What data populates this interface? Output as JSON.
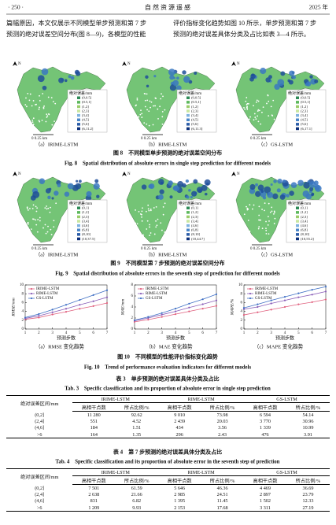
{
  "header": {
    "page": "· 250 ·",
    "journal": "自 然 资 源 遥 感",
    "year": "2025 年"
  },
  "intro": {
    "left": [
      "篇幅原因，本文仅展示不同模型单步预测和第 7 步",
      "预测的绝对误差空间分布(图 8—9)，各模型的性能"
    ],
    "right": [
      "评价指标变化趋势如图 10 所示，单步预测和第 7 步",
      "预测的绝对误差具体分类及占比如表 3—4 所示。"
    ]
  },
  "figure8": {
    "panels": [
      {
        "caption": "（a）IRIME-LSTM",
        "legend_title": "绝对误差/mm",
        "legend": [
          "(0,0.5]",
          "(0.5,1]",
          "(1,2]",
          "(2,3]",
          "(3,4]",
          "(4,5]",
          "(5,6]",
          "(6,11.2]"
        ],
        "north": "N",
        "scale": "0  0.25 km"
      },
      {
        "caption": "（b）RIME-LSTM",
        "legend_title": "绝对误差/mm",
        "legend": [
          "(0,0.5]",
          "(0.5,1]",
          "(1,2]",
          "(2,3]",
          "(3,4]",
          "(4,5]",
          "(5,6]",
          "(6,11.3]"
        ],
        "north": "N",
        "scale": "0  0.25 km"
      },
      {
        "caption": "（c）GS-LSTM",
        "legend_title": "绝对误差/mm",
        "legend": [
          "(0,0.5]",
          "(0.5,1]",
          "(1,2]",
          "(2,3]",
          "(3,4]",
          "(4,5]",
          "(5,6]",
          "(6,17.1]"
        ],
        "north": "N",
        "scale": "0  0.25 km"
      }
    ],
    "caption_cn": "图 8　不同模型单步预测的绝对误差空间分布",
    "caption_en": "Fig. 8　Spatial distribution of absolute errors in single step prediction for different models"
  },
  "figure9": {
    "panels": [
      {
        "caption": "（a）IRIME-LSTM",
        "legend_title": "绝对误差/mm",
        "legend": [
          "(0,1]",
          "(1,2]",
          "(2,3]",
          "(3,4]",
          "(4,6]",
          "(6,8]",
          "(8,10]",
          "(10,37.5]"
        ],
        "north": "N",
        "scale": "0  0.25 km"
      },
      {
        "caption": "（b）RIME-LSTM",
        "legend_title": "绝对误差/mm",
        "legend": [
          "(0,1]",
          "(1,2]",
          "(2,3]",
          "(3,4]",
          "(4,6]",
          "(6,8]",
          "(8,10]",
          "(10,44.7]"
        ],
        "north": "N",
        "scale": "0  0.25 km"
      },
      {
        "caption": "（c）GS-LSTM",
        "legend_title": "绝对误差/mm",
        "legend": [
          "(0,1]",
          "(1,2]",
          "(2,3]",
          "(3,4]",
          "(4,6]",
          "(6,8]",
          "(8,10]",
          "(10,55.2]"
        ],
        "north": "N",
        "scale": "0  0.25 km"
      }
    ],
    "caption_cn": "图 9　不同模型第 7 步预测的绝对误差空间分布",
    "caption_en": "Fig. 9　Spatial distribution of absolute errors in the seventh step of prediction for different models"
  },
  "figure10": {
    "panels": [
      {
        "type": "line",
        "caption": "（a）RMSE 变化趋势",
        "ylabel": "RMSE/mm",
        "xlabel": "预测步数",
        "x": [
          1,
          2,
          3,
          4,
          5,
          6,
          7
        ],
        "xlim": [
          1,
          7
        ],
        "xticks": [
          1,
          2,
          3,
          4,
          5,
          6,
          7
        ],
        "ylim": [
          0,
          10
        ],
        "yticks": [
          0,
          2,
          4,
          6,
          8,
          10
        ],
        "series": [
          {
            "name": "IRIME-LSTM",
            "color": "#e0607e",
            "values": [
              2.2,
              2.6,
              3.3,
              3.9,
              4.6,
              5.2,
              5.9
            ]
          },
          {
            "name": "RIME-LSTM",
            "color": "#8a5fb8",
            "values": [
              2.4,
              3.0,
              3.8,
              4.6,
              5.5,
              6.3,
              7.2
            ]
          },
          {
            "name": "GS-LSTM",
            "color": "#3f6fc4",
            "values": [
              2.6,
              3.4,
              4.4,
              5.5,
              6.6,
              7.7,
              8.8
            ]
          }
        ]
      },
      {
        "type": "line",
        "caption": "（b）MAE 变化趋势",
        "ylabel": "MAE/mm",
        "xlabel": "预测步数",
        "x": [
          1,
          2,
          3,
          4,
          5,
          6,
          7
        ],
        "xlim": [
          1,
          7
        ],
        "xticks": [
          1,
          2,
          3,
          4,
          5,
          6,
          7
        ],
        "ylim": [
          0,
          8
        ],
        "yticks": [
          0,
          2,
          4,
          6,
          8
        ],
        "series": [
          {
            "name": "IRIME-LSTM",
            "color": "#e0607e",
            "values": [
              1.3,
              1.7,
              2.2,
              2.7,
              3.2,
              3.7,
              4.2
            ]
          },
          {
            "name": "RIME-LSTM",
            "color": "#8a5fb8",
            "values": [
              1.5,
              2.0,
              2.6,
              3.2,
              3.9,
              4.5,
              5.2
            ]
          },
          {
            "name": "GS-LSTM",
            "color": "#3f6fc4",
            "values": [
              1.6,
              2.2,
              2.9,
              3.7,
              4.6,
              5.4,
              6.3
            ]
          }
        ]
      },
      {
        "type": "line",
        "caption": "（c）MAPE 变化趋势",
        "ylabel": "MAPE/%",
        "xlabel": "预测步数",
        "x": [
          1,
          2,
          3,
          4,
          5,
          6,
          7
        ],
        "xlim": [
          1,
          7
        ],
        "xticks": [
          1,
          2,
          3,
          4,
          5,
          6,
          7
        ],
        "ylim": [
          0,
          10
        ],
        "yticks": [
          0,
          2,
          4,
          6,
          8,
          10
        ],
        "series": [
          {
            "name": "IRIME-LSTM",
            "color": "#e0607e",
            "values": [
              3.2,
              3.8,
              4.4,
              5.0,
              5.6,
              6.1,
              6.7
            ]
          },
          {
            "name": "RIME-LSTM",
            "color": "#8a5fb8",
            "values": [
              4.5,
              5.0,
              5.8,
              6.5,
              7.2,
              7.8,
              8.5
            ]
          },
          {
            "name": "GS-LSTM",
            "color": "#3f6fc4",
            "values": [
              4.8,
              5.6,
              6.5,
              7.3,
              8.1,
              8.9,
              9.6
            ]
          }
        ]
      }
    ],
    "caption_cn": "图 10　不同模型的性能评价指标变化趋势",
    "caption_en": "Fig. 10　Trend of performance evaluation indicators for different models"
  },
  "table3": {
    "caption_cn": "表 3　单步预测的绝对误差具体分类及占比",
    "caption_en": "Tab. 3　Specific classification and its proportion of absolute error in single step prediction",
    "interval": "绝对误差区间/mm",
    "models": [
      "IRIME-LSTM",
      "RIME-LSTM",
      "GS-LSTM"
    ],
    "sub": [
      "高相干点数",
      "所占比例/%"
    ],
    "rows": [
      [
        "(0,2]",
        "11 280",
        "92.62",
        "9 010",
        "73.98",
        "6 594",
        "54.14"
      ],
      [
        "(2,4]",
        "551",
        "4.52",
        "2 439",
        "20.03",
        "3 770",
        "30.96"
      ],
      [
        "(4,6]",
        "184",
        "1.51",
        "434",
        "3.56",
        "1 339",
        "10.99"
      ],
      [
        ">6",
        "164",
        "1.35",
        "296",
        "2.43",
        "476",
        "3.91"
      ]
    ]
  },
  "table4": {
    "caption_cn": "表 4　第 7 步预测的绝对误差具体分类及占比",
    "caption_en": "Tab. 4　Specific classification and its proportion of absolute error in the seventh step of prediction",
    "interval": "绝对误差区间/mm",
    "models": [
      "IRIME-LSTM",
      "RIME-LSTM",
      "GS-LSTM"
    ],
    "sub": [
      "高相干点数",
      "所占比例/%"
    ],
    "rows": [
      [
        "(0,2]",
        "7 501",
        "61.59",
        "5 646",
        "46.36",
        "4 469",
        "36.69"
      ],
      [
        "(2,4]",
        "2 638",
        "21.66",
        "2 985",
        "24.51",
        "2 897",
        "23.79"
      ],
      [
        "(4,6]",
        "831",
        "6.82",
        "1 395",
        "11.45",
        "1 502",
        "12.33"
      ],
      [
        ">6",
        "1 209",
        "9.93",
        "2 153",
        "17.68",
        "3 311",
        "27.19"
      ]
    ]
  }
}
